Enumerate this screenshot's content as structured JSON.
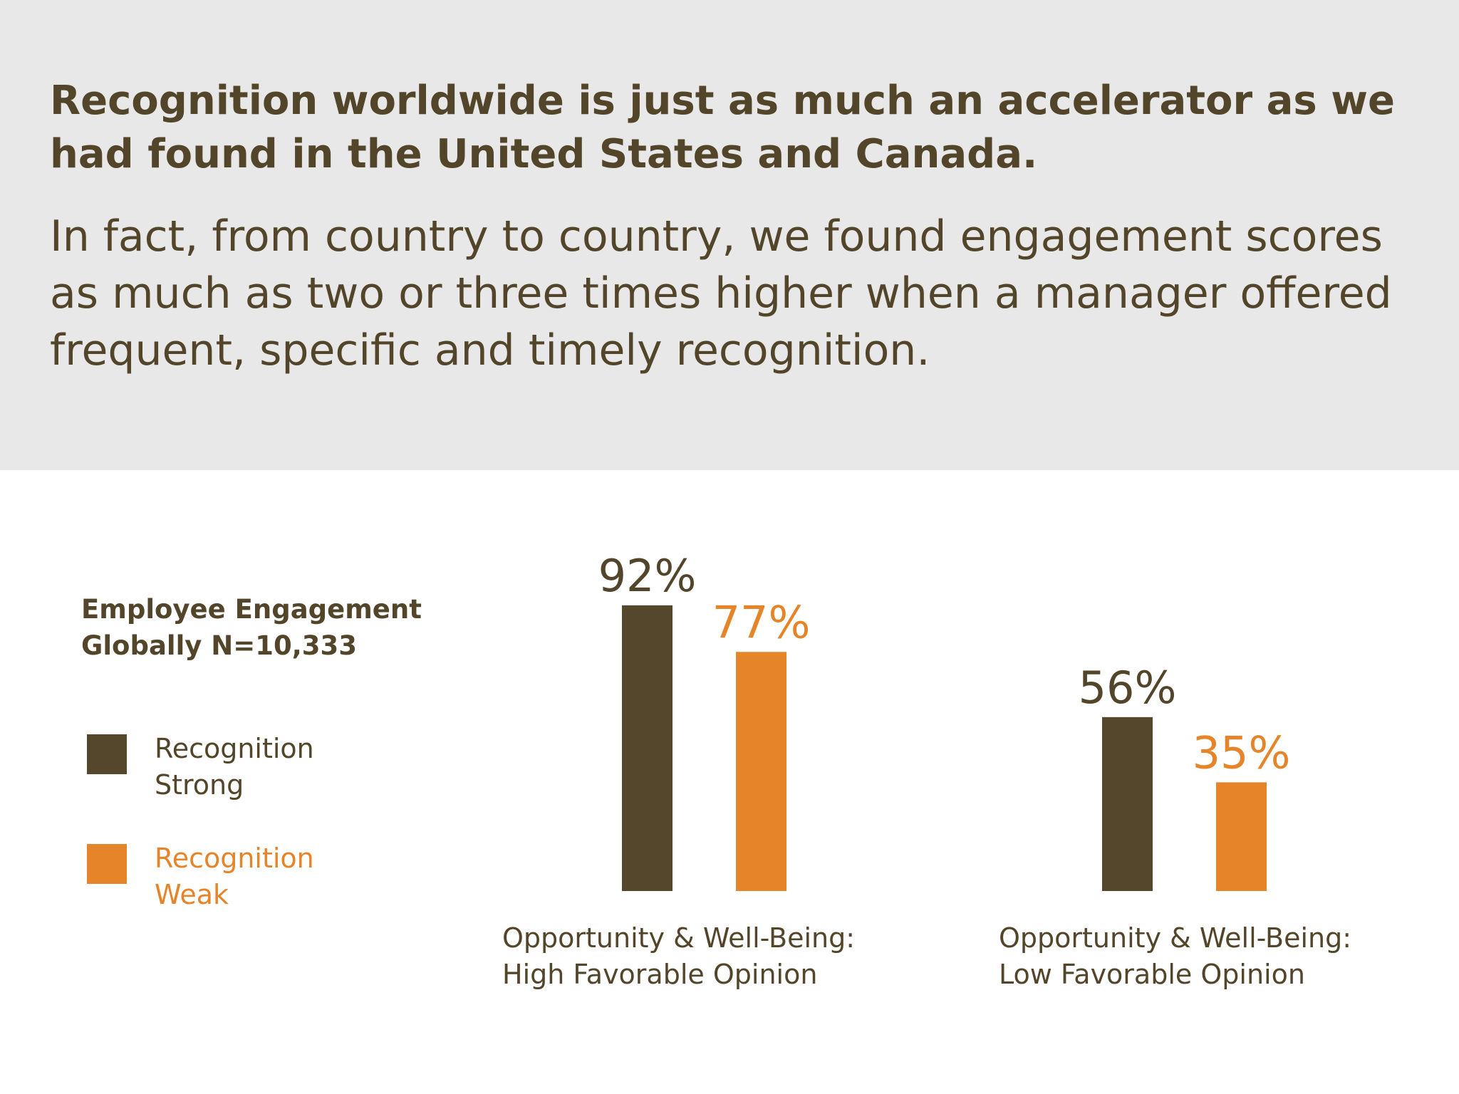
{
  "header": {
    "headline": "Recognition worldwide is just as much an accelerator as we had found in the United States and Canada.",
    "subhead": "In fact, from country to country, we found engagement scores as much as two or three times higher when a manager offered frequent, specific and timely recognition."
  },
  "legend": {
    "title_line1": "Employee Engagement",
    "title_line2": "Globally N=10,333",
    "items": [
      {
        "line1": "Recognition",
        "line2": "Strong",
        "color": "#54472b"
      },
      {
        "line1": "Recognition",
        "line2": "Weak",
        "color": "#e6842a"
      }
    ]
  },
  "chart_data": {
    "type": "bar",
    "categories": [
      {
        "line1": "Opportunity & Well-Being:",
        "line2": "High Favorable Opinion"
      },
      {
        "line1": "Opportunity & Well-Being:",
        "line2": "Low Favorable Opinion"
      }
    ],
    "series": [
      {
        "name": "Recognition Strong",
        "values": [
          92,
          56
        ],
        "labels": [
          "92%",
          "56%"
        ],
        "color": "#54472b"
      },
      {
        "name": "Recognition Weak",
        "values": [
          77,
          35
        ],
        "labels": [
          "77%",
          "35%"
        ],
        "color": "#e6842a"
      }
    ],
    "ylim": [
      0,
      100
    ],
    "grid": false,
    "legend_position": "left"
  }
}
